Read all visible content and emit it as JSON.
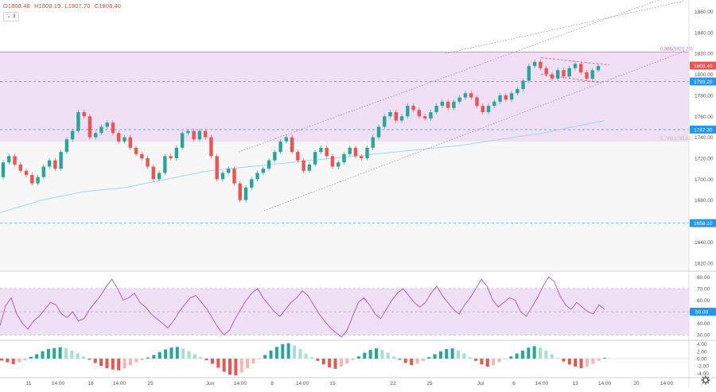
{
  "header": {
    "open": "O1808.48",
    "high": "H1809.19",
    "low": "L1807.70",
    "close": "C1808.40",
    "indicators_count": "3"
  },
  "colors": {
    "up": "#26a69a",
    "down": "#ef5350",
    "ma": "#9ad4e4",
    "zone": "#f0e0f5",
    "zone_line": "#cc66cc",
    "oscillator": "#a040b0",
    "price_badge": "#ef5350",
    "level_badge": "#2196f3",
    "grid_text": "#555555"
  },
  "chart_data": {
    "type": "candlestick",
    "price_axis": {
      "ticks": [
        "1860.00",
        "1840.00",
        "1820.00",
        "1800.00",
        "1780.00",
        "1760.00",
        "1740.00",
        "1720.00",
        "1700.00",
        "1680.00",
        "1660.00",
        "1640.00",
        "1620.00"
      ],
      "range": [
        1613,
        1871
      ]
    },
    "time_axis": {
      "labels": [
        "11",
        "14:00",
        "18",
        "14:00",
        "25",
        "Jun",
        "14:00",
        "8",
        "14:00",
        "15",
        "22",
        "25",
        "Jul",
        "6",
        "14:00",
        "13",
        "14:00",
        "20",
        "14:00"
      ]
    },
    "price_labels": {
      "last": "1808.40",
      "level_top": "1793.20",
      "level_mid": "1747.30",
      "level_low": "1658.10"
    },
    "annotations": {
      "fib_top": "0.886(1821.26)",
      "fib_bottom": "0.786(1735.82)"
    },
    "candles": [
      [
        1702,
        1716
      ],
      [
        1716,
        1722
      ],
      [
        1722,
        1714
      ],
      [
        1714,
        1708
      ],
      [
        1708,
        1704
      ],
      [
        1704,
        1696
      ],
      [
        1696,
        1702
      ],
      [
        1702,
        1712
      ],
      [
        1712,
        1718
      ],
      [
        1718,
        1710
      ],
      [
        1710,
        1726
      ],
      [
        1726,
        1738
      ],
      [
        1738,
        1746
      ],
      [
        1746,
        1764
      ],
      [
        1764,
        1760
      ],
      [
        1760,
        1740
      ],
      [
        1740,
        1744
      ],
      [
        1744,
        1750
      ],
      [
        1750,
        1754
      ],
      [
        1754,
        1744
      ],
      [
        1744,
        1736
      ],
      [
        1736,
        1740
      ],
      [
        1740,
        1730
      ],
      [
        1730,
        1724
      ],
      [
        1724,
        1720
      ],
      [
        1720,
        1712
      ],
      [
        1712,
        1700
      ],
      [
        1700,
        1706
      ],
      [
        1706,
        1722
      ],
      [
        1722,
        1720
      ],
      [
        1720,
        1730
      ],
      [
        1730,
        1744
      ],
      [
        1744,
        1746
      ],
      [
        1746,
        1738
      ],
      [
        1738,
        1746
      ],
      [
        1746,
        1740
      ],
      [
        1740,
        1722
      ],
      [
        1722,
        1700
      ],
      [
        1700,
        1706
      ],
      [
        1706,
        1710
      ],
      [
        1710,
        1696
      ],
      [
        1696,
        1680
      ],
      [
        1680,
        1692
      ],
      [
        1692,
        1700
      ],
      [
        1700,
        1706
      ],
      [
        1706,
        1710
      ],
      [
        1710,
        1718
      ],
      [
        1718,
        1726
      ],
      [
        1726,
        1736
      ],
      [
        1736,
        1740
      ],
      [
        1740,
        1726
      ],
      [
        1726,
        1718
      ],
      [
        1718,
        1708
      ],
      [
        1708,
        1714
      ],
      [
        1714,
        1726
      ],
      [
        1726,
        1730
      ],
      [
        1730,
        1722
      ],
      [
        1722,
        1712
      ],
      [
        1712,
        1716
      ],
      [
        1716,
        1724
      ],
      [
        1724,
        1730
      ],
      [
        1730,
        1722
      ],
      [
        1722,
        1720
      ],
      [
        1720,
        1730
      ],
      [
        1730,
        1740
      ],
      [
        1740,
        1750
      ],
      [
        1750,
        1760
      ],
      [
        1760,
        1764
      ],
      [
        1764,
        1756
      ],
      [
        1756,
        1760
      ],
      [
        1760,
        1770
      ],
      [
        1770,
        1766
      ],
      [
        1766,
        1760
      ],
      [
        1760,
        1758
      ],
      [
        1758,
        1764
      ],
      [
        1764,
        1770
      ],
      [
        1770,
        1774
      ],
      [
        1774,
        1768
      ],
      [
        1768,
        1774
      ],
      [
        1774,
        1778
      ],
      [
        1778,
        1782
      ],
      [
        1782,
        1778
      ],
      [
        1778,
        1770
      ],
      [
        1770,
        1764
      ],
      [
        1764,
        1770
      ],
      [
        1770,
        1774
      ],
      [
        1774,
        1780
      ],
      [
        1780,
        1776
      ],
      [
        1776,
        1782
      ],
      [
        1782,
        1786
      ],
      [
        1786,
        1794
      ],
      [
        1794,
        1808
      ],
      [
        1808,
        1812
      ],
      [
        1812,
        1806
      ],
      [
        1806,
        1800
      ],
      [
        1800,
        1796
      ],
      [
        1796,
        1804
      ],
      [
        1804,
        1798
      ],
      [
        1798,
        1806
      ],
      [
        1806,
        1810
      ],
      [
        1810,
        1802
      ],
      [
        1802,
        1796
      ],
      [
        1796,
        1804
      ],
      [
        1804,
        1808
      ]
    ],
    "ma_values": [
      1668,
      1674,
      1680,
      1684,
      1688,
      1690,
      1692,
      1696,
      1700,
      1704,
      1708,
      1710,
      1712,
      1714,
      1716,
      1718,
      1720,
      1722,
      1724,
      1726,
      1728,
      1730,
      1732,
      1735,
      1738,
      1741,
      1744,
      1748,
      1752,
      1756
    ]
  },
  "rsi": {
    "ticks": [
      "80.00",
      "70.00",
      "60.00",
      "50.00",
      "40.00",
      "30.00"
    ],
    "last_value": "50.00",
    "values": [
      38,
      55,
      62,
      48,
      40,
      35,
      42,
      46,
      52,
      58,
      56,
      48,
      45,
      50,
      42,
      44,
      52,
      58,
      64,
      72,
      78,
      70,
      60,
      62,
      66,
      58,
      54,
      48,
      44,
      40,
      36,
      42,
      50,
      56,
      62,
      64,
      58,
      52,
      44,
      36,
      30,
      34,
      44,
      52,
      60,
      66,
      70,
      62,
      56,
      50,
      46,
      52,
      58,
      62,
      68,
      64,
      56,
      48,
      42,
      36,
      32,
      28,
      34,
      46,
      58,
      62,
      56,
      48,
      44,
      52,
      60,
      66,
      70,
      64,
      58,
      54,
      58,
      66,
      72,
      64,
      58,
      52,
      48,
      56,
      62,
      70,
      78,
      72,
      60,
      54,
      58,
      62,
      60,
      50,
      46,
      54,
      62,
      72,
      80,
      76,
      64,
      56,
      52,
      58,
      54,
      50,
      48,
      56,
      52
    ]
  },
  "macd": {
    "ticks": [
      "4.00",
      "2.00",
      "0.00",
      "-2.00",
      "-4.00"
    ],
    "values": [
      -0.5,
      -1,
      -1.5,
      -1,
      -0.4,
      0.5,
      1.2,
      2,
      2.6,
      2.9,
      3.1,
      2.8,
      2.2,
      1.4,
      0.6,
      -0.3,
      -1.2,
      -2,
      -2.6,
      -3,
      -3.2,
      -2.6,
      -1.8,
      -1,
      -0.4,
      0.3,
      1,
      1.8,
      2.5,
      3,
      3.2,
      2.7,
      2,
      1.2,
      0.4,
      -0.4,
      -1.4,
      -2.5,
      -3.6,
      -4.4,
      -4.6,
      -3.8,
      -2.6,
      -1.4,
      -0.2,
      1,
      2.2,
      3.2,
      4,
      4.2,
      3.6,
      2.6,
      1.4,
      0.4,
      -0.6,
      -1.6,
      -2.4,
      -2.8,
      -2.2,
      -1.4,
      -0.4,
      0.6,
      1.6,
      2.4,
      2.8,
      2.4,
      1.6,
      0.6,
      -0.3,
      -1.2,
      -1.8,
      -1.4,
      -0.6,
      0.4,
      1.2,
      2,
      2.6,
      2.8,
      2.2,
      1.4,
      0.4,
      -0.6,
      -1.6,
      -2.2,
      -1.8,
      -1,
      -0.2,
      0.6,
      1.4,
      2.2,
      3,
      3.4,
      3,
      2.2,
      1.2,
      0.2,
      -0.8,
      -1.6,
      -2.2,
      -2.6,
      -2.2,
      -1.4,
      -0.6,
      0.2
    ]
  }
}
